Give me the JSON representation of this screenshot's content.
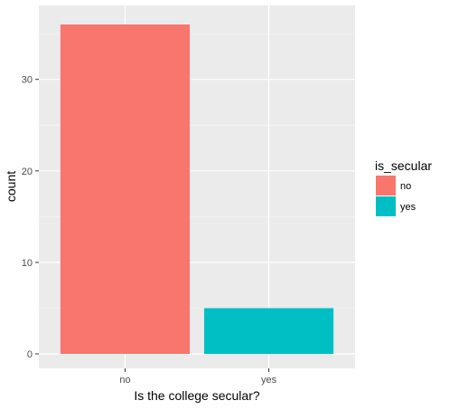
{
  "chart_data": {
    "type": "bar",
    "categories": [
      "no",
      "yes"
    ],
    "values": [
      36,
      5
    ],
    "xlabel": "Is the college secular?",
    "ylabel": "count",
    "ylim": [
      0,
      37.8
    ],
    "yticks": [
      0,
      10,
      20,
      30
    ],
    "grid": true,
    "legend": {
      "title": "is_secular",
      "placement": "right",
      "entries": [
        {
          "label": "no",
          "color": "#F8766D"
        },
        {
          "label": "yes",
          "color": "#00BFC4"
        }
      ]
    },
    "colors": [
      "#F8766D",
      "#00BFC4"
    ],
    "panel_background": "#EBEBEB"
  }
}
